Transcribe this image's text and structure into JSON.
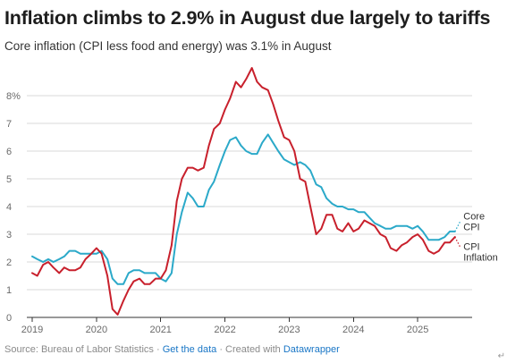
{
  "title": "Inflation climbs to 2.9% in August due largely to tariffs",
  "subtitle": "Core inflation (CPI less food and energy) was 3.1% in August",
  "footer": {
    "source": "Source: Bureau of Labor Statistics",
    "sep1": " · ",
    "link": "Get the data",
    "sep2": " · Created with ",
    "tool": "Datawrapper"
  },
  "colors": {
    "core": "#2ba9c9",
    "cpi": "#c8202c",
    "grid": "#d9d9d9",
    "axis": "#333333",
    "link": "#1976c6"
  },
  "chart_data": {
    "type": "line",
    "title": "Inflation climbs to 2.9% in August due largely to tariffs",
    "subtitle": "Core inflation (CPI less food and energy) was 3.1% in August",
    "xlabel": "",
    "ylabel": "",
    "ylim": [
      0,
      9
    ],
    "xlim": [
      2019.0,
      2025.75
    ],
    "y_ticks": [
      0,
      1,
      2,
      3,
      4,
      5,
      6,
      7,
      8
    ],
    "y_tick_labels": [
      "0",
      "1",
      "2",
      "3",
      "4",
      "5",
      "6",
      "7",
      "8%"
    ],
    "x_ticks": [
      2019,
      2020,
      2021,
      2022,
      2023,
      2024,
      2025
    ],
    "x_tick_labels": [
      "2019",
      "2020",
      "2021",
      "2022",
      "2023",
      "2024",
      "2025"
    ],
    "grid": "horizontal",
    "legend": "inline labels at right end of lines",
    "series": [
      {
        "name": "Core CPI",
        "label_lines": [
          "Core",
          "CPI"
        ],
        "color": "#2ba9c9",
        "points": [
          [
            2019.0,
            2.2
          ],
          [
            2019.08,
            2.1
          ],
          [
            2019.17,
            2.0
          ],
          [
            2019.25,
            2.1
          ],
          [
            2019.33,
            2.0
          ],
          [
            2019.42,
            2.1
          ],
          [
            2019.5,
            2.2
          ],
          [
            2019.58,
            2.4
          ],
          [
            2019.67,
            2.4
          ],
          [
            2019.75,
            2.3
          ],
          [
            2019.83,
            2.3
          ],
          [
            2019.92,
            2.3
          ],
          [
            2020.0,
            2.3
          ],
          [
            2020.08,
            2.4
          ],
          [
            2020.17,
            2.1
          ],
          [
            2020.25,
            1.4
          ],
          [
            2020.33,
            1.2
          ],
          [
            2020.42,
            1.2
          ],
          [
            2020.5,
            1.6
          ],
          [
            2020.58,
            1.7
          ],
          [
            2020.67,
            1.7
          ],
          [
            2020.75,
            1.6
          ],
          [
            2020.83,
            1.6
          ],
          [
            2020.92,
            1.6
          ],
          [
            2021.0,
            1.4
          ],
          [
            2021.08,
            1.3
          ],
          [
            2021.17,
            1.6
          ],
          [
            2021.25,
            3.0
          ],
          [
            2021.33,
            3.8
          ],
          [
            2021.42,
            4.5
          ],
          [
            2021.5,
            4.3
          ],
          [
            2021.58,
            4.0
          ],
          [
            2021.67,
            4.0
          ],
          [
            2021.75,
            4.6
          ],
          [
            2021.83,
            4.9
          ],
          [
            2021.92,
            5.5
          ],
          [
            2022.0,
            6.0
          ],
          [
            2022.08,
            6.4
          ],
          [
            2022.17,
            6.5
          ],
          [
            2022.25,
            6.2
          ],
          [
            2022.33,
            6.0
          ],
          [
            2022.42,
            5.9
          ],
          [
            2022.5,
            5.9
          ],
          [
            2022.58,
            6.3
          ],
          [
            2022.67,
            6.6
          ],
          [
            2022.75,
            6.3
          ],
          [
            2022.83,
            6.0
          ],
          [
            2022.92,
            5.7
          ],
          [
            2023.0,
            5.6
          ],
          [
            2023.08,
            5.5
          ],
          [
            2023.17,
            5.6
          ],
          [
            2023.25,
            5.5
          ],
          [
            2023.33,
            5.3
          ],
          [
            2023.42,
            4.8
          ],
          [
            2023.5,
            4.7
          ],
          [
            2023.58,
            4.3
          ],
          [
            2023.67,
            4.1
          ],
          [
            2023.75,
            4.0
          ],
          [
            2023.83,
            4.0
          ],
          [
            2023.92,
            3.9
          ],
          [
            2024.0,
            3.9
          ],
          [
            2024.08,
            3.8
          ],
          [
            2024.17,
            3.8
          ],
          [
            2024.25,
            3.6
          ],
          [
            2024.33,
            3.4
          ],
          [
            2024.42,
            3.3
          ],
          [
            2024.5,
            3.2
          ],
          [
            2024.58,
            3.2
          ],
          [
            2024.67,
            3.3
          ],
          [
            2024.75,
            3.3
          ],
          [
            2024.83,
            3.3
          ],
          [
            2024.92,
            3.2
          ],
          [
            2025.0,
            3.3
          ],
          [
            2025.08,
            3.1
          ],
          [
            2025.17,
            2.8
          ],
          [
            2025.25,
            2.8
          ],
          [
            2025.33,
            2.8
          ],
          [
            2025.42,
            2.9
          ],
          [
            2025.5,
            3.1
          ],
          [
            2025.58,
            3.1
          ]
        ],
        "projection": [
          2025.67,
          3.5
        ]
      },
      {
        "name": "CPI Inflation",
        "label_lines": [
          "CPI",
          "Inflation"
        ],
        "color": "#c8202c",
        "points": [
          [
            2019.0,
            1.6
          ],
          [
            2019.08,
            1.5
          ],
          [
            2019.17,
            1.9
          ],
          [
            2019.25,
            2.0
          ],
          [
            2019.33,
            1.8
          ],
          [
            2019.42,
            1.6
          ],
          [
            2019.5,
            1.8
          ],
          [
            2019.58,
            1.7
          ],
          [
            2019.67,
            1.7
          ],
          [
            2019.75,
            1.8
          ],
          [
            2019.83,
            2.1
          ],
          [
            2019.92,
            2.3
          ],
          [
            2020.0,
            2.5
          ],
          [
            2020.08,
            2.3
          ],
          [
            2020.17,
            1.5
          ],
          [
            2020.25,
            0.3
          ],
          [
            2020.33,
            0.1
          ],
          [
            2020.42,
            0.6
          ],
          [
            2020.5,
            1.0
          ],
          [
            2020.58,
            1.3
          ],
          [
            2020.67,
            1.4
          ],
          [
            2020.75,
            1.2
          ],
          [
            2020.83,
            1.2
          ],
          [
            2020.92,
            1.4
          ],
          [
            2021.0,
            1.4
          ],
          [
            2021.08,
            1.7
          ],
          [
            2021.17,
            2.6
          ],
          [
            2021.25,
            4.2
          ],
          [
            2021.33,
            5.0
          ],
          [
            2021.42,
            5.4
          ],
          [
            2021.5,
            5.4
          ],
          [
            2021.58,
            5.3
          ],
          [
            2021.67,
            5.4
          ],
          [
            2021.75,
            6.2
          ],
          [
            2021.83,
            6.8
          ],
          [
            2021.92,
            7.0
          ],
          [
            2022.0,
            7.5
          ],
          [
            2022.08,
            7.9
          ],
          [
            2022.17,
            8.5
          ],
          [
            2022.25,
            8.3
          ],
          [
            2022.33,
            8.6
          ],
          [
            2022.42,
            9.0
          ],
          [
            2022.5,
            8.5
          ],
          [
            2022.58,
            8.3
          ],
          [
            2022.67,
            8.2
          ],
          [
            2022.75,
            7.7
          ],
          [
            2022.83,
            7.1
          ],
          [
            2022.92,
            6.5
          ],
          [
            2023.0,
            6.4
          ],
          [
            2023.08,
            6.0
          ],
          [
            2023.17,
            5.0
          ],
          [
            2023.25,
            4.9
          ],
          [
            2023.33,
            4.0
          ],
          [
            2023.42,
            3.0
          ],
          [
            2023.5,
            3.2
          ],
          [
            2023.58,
            3.7
          ],
          [
            2023.67,
            3.7
          ],
          [
            2023.75,
            3.2
          ],
          [
            2023.83,
            3.1
          ],
          [
            2023.92,
            3.4
          ],
          [
            2024.0,
            3.1
          ],
          [
            2024.08,
            3.2
          ],
          [
            2024.17,
            3.5
          ],
          [
            2024.25,
            3.4
          ],
          [
            2024.33,
            3.3
          ],
          [
            2024.42,
            3.0
          ],
          [
            2024.5,
            2.9
          ],
          [
            2024.58,
            2.5
          ],
          [
            2024.67,
            2.4
          ],
          [
            2024.75,
            2.6
          ],
          [
            2024.83,
            2.7
          ],
          [
            2024.92,
            2.9
          ],
          [
            2025.0,
            3.0
          ],
          [
            2025.08,
            2.8
          ],
          [
            2025.17,
            2.4
          ],
          [
            2025.25,
            2.3
          ],
          [
            2025.33,
            2.4
          ],
          [
            2025.42,
            2.7
          ],
          [
            2025.5,
            2.7
          ],
          [
            2025.58,
            2.9
          ]
        ],
        "projection": [
          2025.67,
          2.5
        ]
      }
    ]
  }
}
